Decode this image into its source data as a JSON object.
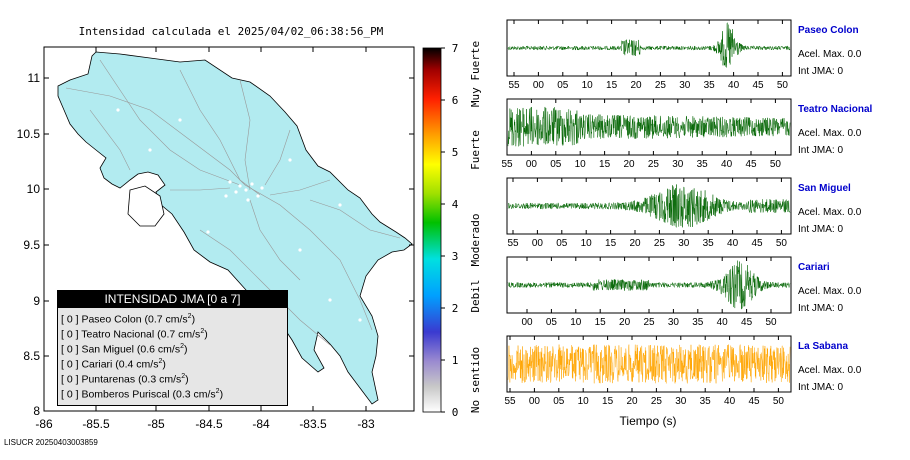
{
  "title": "Intensidad calculada el 2025/04/02_06:38:56_PM",
  "map": {
    "x_ticks": [
      "-86",
      "-85.5",
      "-85",
      "-84.5",
      "-84",
      "-83.5",
      "-83"
    ],
    "y_ticks": [
      "11",
      "10.5",
      "10",
      "9.5",
      "9",
      "8.5",
      "8"
    ],
    "land_color": "#b2ebf0"
  },
  "colorbar": {
    "ticks": [
      "7",
      "6",
      "5",
      "4",
      "3",
      "2",
      "1",
      "0"
    ],
    "labels": [
      "Muy Fuerte",
      "Fuerte",
      "Moderado",
      "Debil",
      "No sentido"
    ]
  },
  "legend": {
    "title": "INTENSIDAD JMA [0 a 7]",
    "items": [
      {
        "int": "[ 0 ]",
        "name": "Paseo Colon",
        "accel": "(0.7 cm/s",
        "exp": "2",
        "close": ")"
      },
      {
        "int": "[ 0 ]",
        "name": "Teatro Nacional",
        "accel": "(0.7 cm/s",
        "exp": "2",
        "close": ")"
      },
      {
        "int": "[ 0 ]",
        "name": "San Miguel",
        "accel": "(0.6 cm/s",
        "exp": "2",
        "close": ")"
      },
      {
        "int": "[ 0 ]",
        "name": "Cariari",
        "accel": "(0.4 cm/s",
        "exp": "2",
        "close": ")"
      },
      {
        "int": "[ 0 ]",
        "name": "Puntarenas",
        "accel": "(0.3 cm/s",
        "exp": "2",
        "close": ")"
      },
      {
        "int": "[ 0 ]",
        "name": "Bomberos Puriscal",
        "accel": "(0.3 cm/s",
        "exp": "2",
        "close": ")"
      }
    ]
  },
  "chart_data": [
    {
      "type": "line",
      "name": "Paseo Colon",
      "accel_label": "Acel. Max. 0.0",
      "jma_label": "Int JMA: 0",
      "color": "#006400",
      "tick_labels": [
        "55",
        "00",
        "05",
        "10",
        "15",
        "20",
        "25",
        "30",
        "35",
        "40",
        "45",
        "50"
      ]
    },
    {
      "type": "line",
      "name": "Teatro Nacional",
      "accel_label": "Acel. Max. 0.0",
      "jma_label": "Int JMA: 0",
      "color": "#006400",
      "tick_labels": [
        "55",
        "00",
        "05",
        "10",
        "15",
        "20",
        "25",
        "30",
        "35",
        "40",
        "45",
        "50"
      ]
    },
    {
      "type": "line",
      "name": "San Miguel",
      "accel_label": "Acel. Max. 0.0",
      "jma_label": "Int JMA: 0",
      "color": "#006400",
      "tick_labels": [
        "55",
        "00",
        "05",
        "10",
        "15",
        "20",
        "25",
        "30",
        "35",
        "40",
        "45",
        "50",
        "55"
      ]
    },
    {
      "type": "line",
      "name": "Cariari",
      "accel_label": "Acel. Max. 0.0",
      "jma_label": "Int JMA: 0",
      "color": "#006400",
      "tick_labels": [
        "00",
        "05",
        "10",
        "15",
        "20",
        "25",
        "30",
        "35",
        "40",
        "45",
        "50",
        "55"
      ]
    },
    {
      "type": "line",
      "name": "La Sabana",
      "accel_label": "Acel. Max. 0.0",
      "jma_label": "Int JMA: 0",
      "color": "#ffa500",
      "tick_labels": [
        "55",
        "00",
        "05",
        "10",
        "15",
        "20",
        "25",
        "30",
        "35",
        "40",
        "45",
        "50"
      ],
      "xlabel": "Tiempo (s)"
    }
  ],
  "footer": "LISUCR 20250403003859"
}
